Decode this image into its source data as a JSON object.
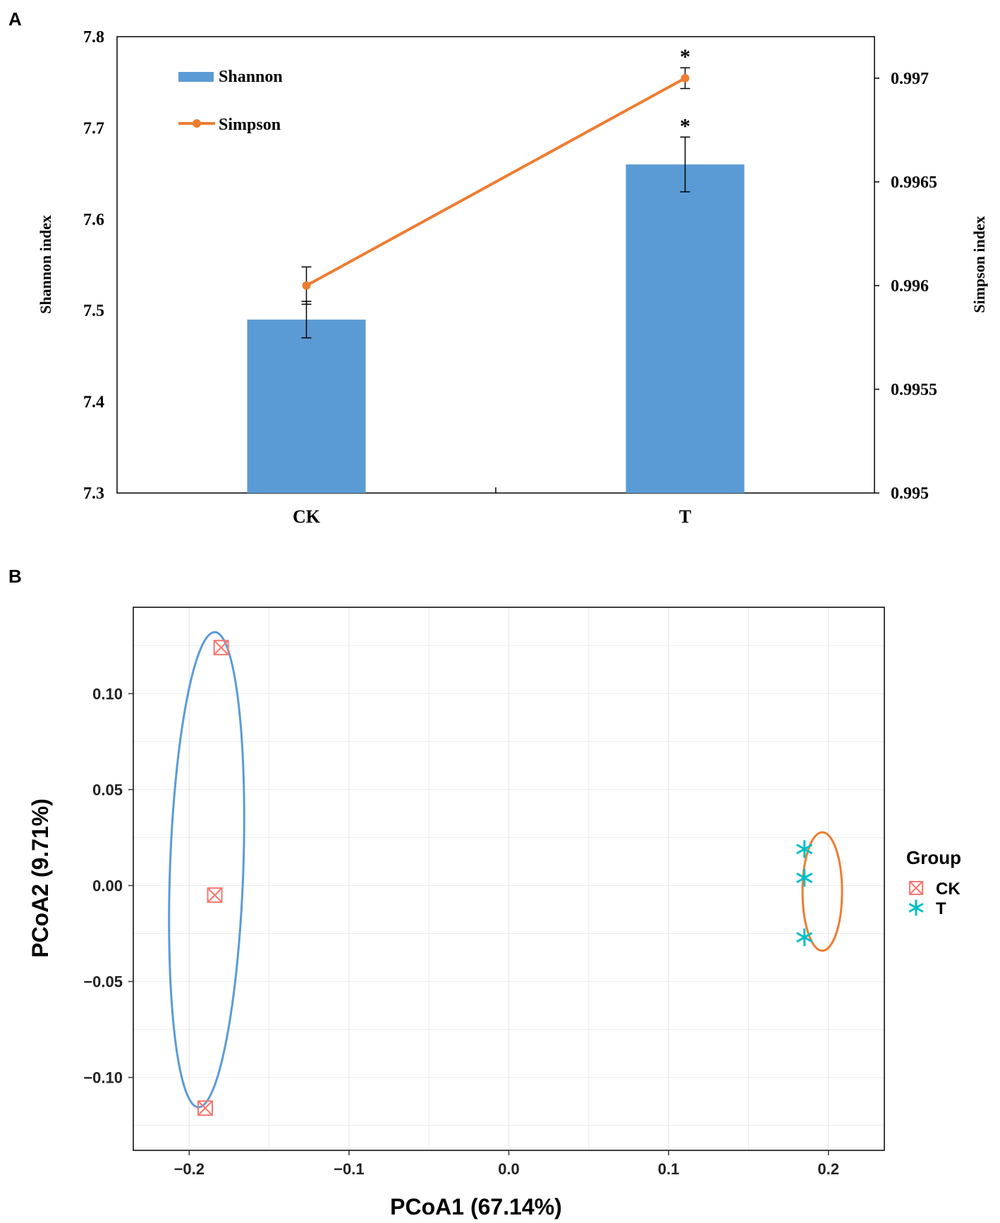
{
  "chart_data": [
    {
      "panel_label": "A",
      "type": "bar",
      "categories": [
        "CK",
        "T"
      ],
      "series": [
        {
          "name": "Shannon",
          "kind": "bar",
          "axis": "left",
          "values": [
            7.49,
            7.66
          ],
          "errors": [
            0.02,
            0.03
          ]
        },
        {
          "name": "Simpson",
          "kind": "line",
          "axis": "right",
          "values": [
            0.996,
            0.997
          ],
          "errors": [
            9e-05,
            5e-05
          ]
        }
      ],
      "annotations": [
        {
          "text": "*",
          "category": "T",
          "series": "Simpson"
        },
        {
          "text": "*",
          "category": "T",
          "series": "Shannon"
        }
      ],
      "ylabel": "Shannon index",
      "y2label": "Simpson index",
      "xlabel": "",
      "ylim": [
        7.3,
        7.8
      ],
      "y2lim": [
        0.995,
        0.9972
      ],
      "yticks": [
        "7.3",
        "7.4",
        "7.5",
        "7.6",
        "7.7",
        "7.8"
      ],
      "y2ticks": [
        "0.995",
        "0.9955",
        "0.996",
        "0.9965",
        "0.997"
      ],
      "legend_position": "top-left",
      "colors": {
        "Shannon": "#5b9bd5",
        "Simpson": "#ed7d31"
      },
      "grid": false
    },
    {
      "panel_label": "B",
      "type": "scatter",
      "xlabel": "PCoA1 (67.14%)",
      "ylabel": "PCoA2 (9.71%)",
      "xlim": [
        -0.235,
        0.235
      ],
      "ylim": [
        -0.138,
        0.145
      ],
      "xticks": [
        "−0.2",
        "−0.1",
        "0.0",
        "0.1",
        "0.2"
      ],
      "yticks": [
        "−0.10",
        "−0.05",
        "0.00",
        "0.05",
        "0.10"
      ],
      "grid": true,
      "legend_title": "Group",
      "legend_position": "right",
      "series": [
        {
          "name": "CK",
          "marker": "boxed-x",
          "color": "#f8766d",
          "ellipse_color": "#5b9bd5",
          "points": [
            {
              "x": -0.18,
              "y": 0.124
            },
            {
              "x": -0.184,
              "y": -0.005
            },
            {
              "x": -0.19,
              "y": -0.116
            }
          ]
        },
        {
          "name": "T",
          "marker": "asterisk",
          "color": "#00bfc4",
          "ellipse_color": "#ed7d31",
          "points": [
            {
              "x": 0.185,
              "y": 0.019
            },
            {
              "x": 0.185,
              "y": 0.004
            },
            {
              "x": 0.185,
              "y": -0.027
            }
          ]
        }
      ]
    }
  ]
}
